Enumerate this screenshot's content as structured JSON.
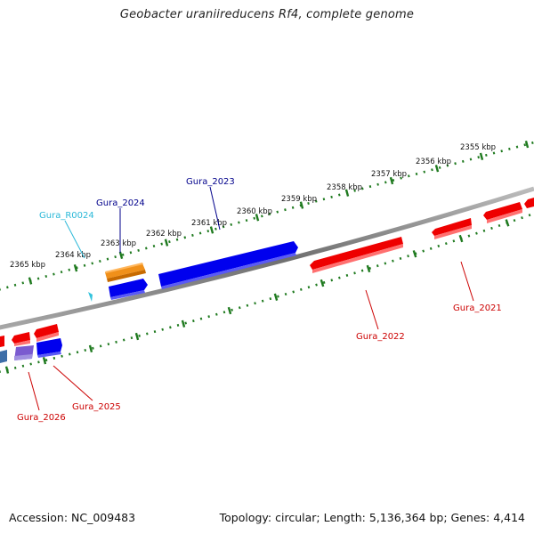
{
  "title": "Geobacter uraniireducens Rf4, complete genome",
  "footer": {
    "accession": "Accession: NC_009483",
    "summary": "Topology: circular; Length: 5,136,364 bp; Genes: 4,414"
  },
  "ruler_labels": [
    "2355 kbp",
    "2356 kbp",
    "2357 kbp",
    "2358 kbp",
    "2359 kbp",
    "2360 kbp",
    "2361 kbp",
    "2362 kbp",
    "2363 kbp",
    "2364 kbp",
    "2365 kbp"
  ],
  "feature_labels": {
    "gura_2023": "Gura_2023",
    "gura_2024": "Gura_2024",
    "gura_r0024": "Gura_R0024",
    "gura_2021": "Gura_2021",
    "gura_2022": "Gura_2022",
    "gura_2025": "Gura_2025",
    "gura_2026": "Gura_2026"
  },
  "colors": {
    "forward_cds": "#0000ee",
    "reverse_cds": "#ee0000",
    "rna": "#f0901a",
    "trna_marker": "#33c3dd",
    "forward_label": "#00008b",
    "reverse_label": "#cc0000",
    "rna_label": "#2ab8d8",
    "backbone": "#888888",
    "ticks": "#1f7a1f"
  }
}
